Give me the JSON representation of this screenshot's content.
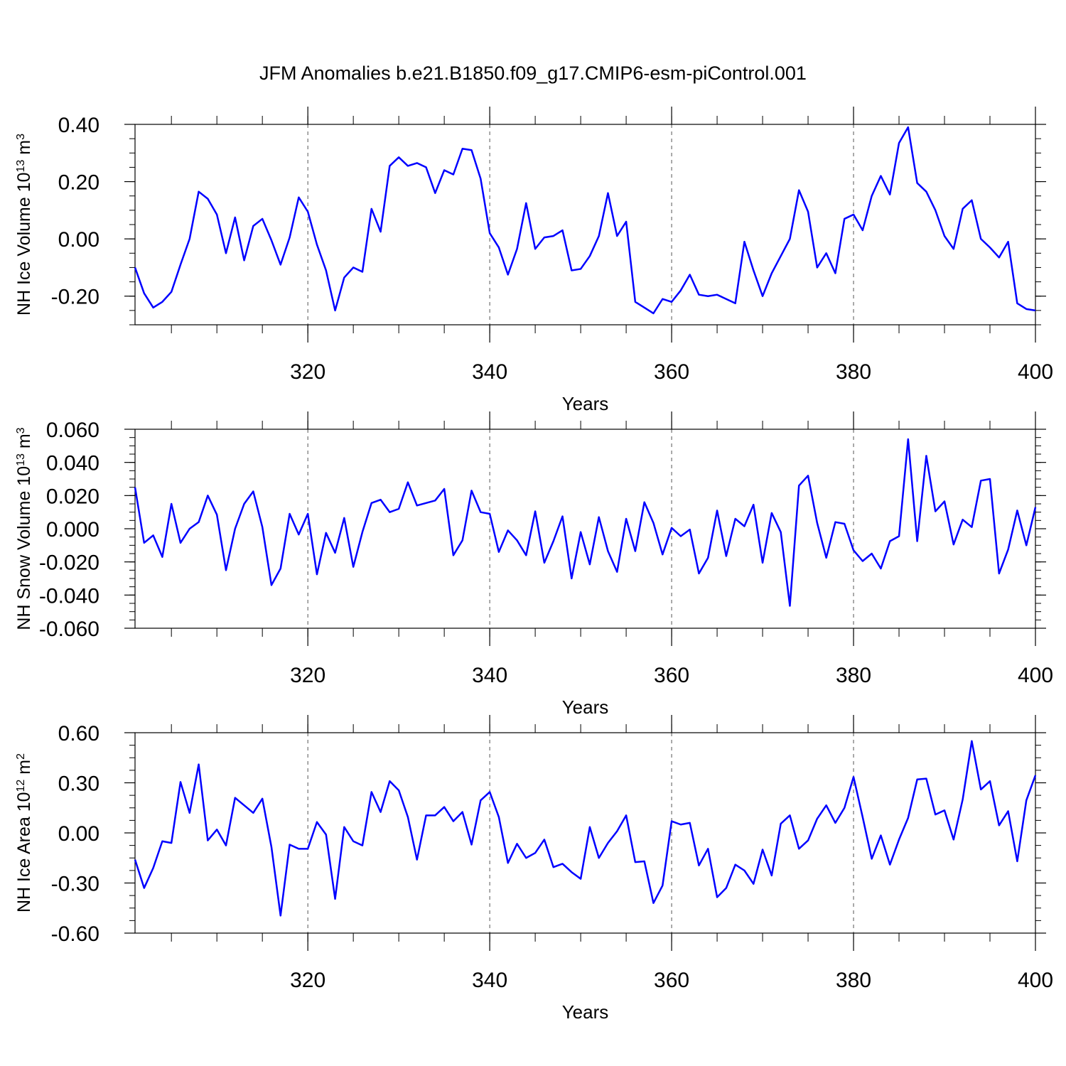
{
  "title": "JFM Anomalies b.e21.B1850.f09_g17.CMIP6-esm-piControl.001",
  "chart_data": [
    {
      "type": "line",
      "color": "#0000ff",
      "ylabel": [
        {
          "text": "NH Ice Volume 10"
        },
        {
          "text": "13",
          "sup": true
        },
        {
          "text": " m"
        },
        {
          "text": "3",
          "sup": true
        }
      ],
      "xlabel": "Years",
      "x": [
        301,
        302,
        303,
        304,
        305,
        306,
        307,
        308,
        309,
        310,
        311,
        312,
        313,
        314,
        315,
        316,
        317,
        318,
        319,
        320,
        321,
        322,
        323,
        324,
        325,
        326,
        327,
        328,
        329,
        330,
        331,
        332,
        333,
        334,
        335,
        336,
        337,
        338,
        339,
        340,
        341,
        342,
        343,
        344,
        345,
        346,
        347,
        348,
        349,
        350,
        351,
        352,
        353,
        354,
        355,
        356,
        357,
        358,
        359,
        360,
        361,
        362,
        363,
        364,
        365,
        366,
        367,
        368,
        369,
        370,
        371,
        372,
        373,
        374,
        375,
        376,
        377,
        378,
        379,
        380,
        381,
        382,
        383,
        384,
        385,
        386,
        387,
        388,
        389,
        390,
        391,
        392,
        393,
        394,
        395,
        396,
        397,
        398,
        399,
        400
      ],
      "values": [
        -0.1,
        -0.19,
        -0.24,
        -0.22,
        -0.185,
        -0.09,
        0.0,
        0.165,
        0.14,
        0.085,
        -0.05,
        0.075,
        -0.075,
        0.045,
        0.07,
        -0.005,
        -0.09,
        0.005,
        0.145,
        0.095,
        -0.02,
        -0.11,
        -0.25,
        -0.135,
        -0.1,
        -0.115,
        0.105,
        0.025,
        0.255,
        0.285,
        0.255,
        0.265,
        0.25,
        0.16,
        0.24,
        0.225,
        0.315,
        0.31,
        0.21,
        0.02,
        -0.03,
        -0.125,
        -0.035,
        0.125,
        -0.035,
        0.005,
        0.01,
        0.03,
        -0.11,
        -0.105,
        -0.06,
        0.01,
        0.16,
        0.01,
        0.06,
        -0.22,
        -0.24,
        -0.26,
        -0.21,
        -0.22,
        -0.18,
        -0.125,
        -0.195,
        -0.2,
        -0.195,
        -0.21,
        -0.225,
        -0.01,
        -0.11,
        -0.2,
        -0.12,
        -0.06,
        0.0,
        0.17,
        0.095,
        -0.1,
        -0.05,
        -0.12,
        0.07,
        0.085,
        0.03,
        0.15,
        0.22,
        0.155,
        0.335,
        0.39,
        0.195,
        0.165,
        0.1,
        0.01,
        -0.035,
        0.105,
        0.135,
        0.0,
        -0.03,
        -0.065,
        -0.01,
        -0.225,
        -0.245,
        -0.25
      ],
      "xlim": [
        301,
        400
      ],
      "xticks": [
        320,
        340,
        360,
        380,
        400
      ],
      "xminor_step": 5,
      "ylim": [
        -0.3,
        0.4
      ],
      "yminor_step": 0.05,
      "yticks": [
        {
          "value": -0.2,
          "label": "-0.20"
        },
        {
          "value": 0,
          "label": "0.00"
        },
        {
          "value": 0.2,
          "label": "0.20"
        },
        {
          "value": 0.4,
          "label": "0.40"
        }
      ],
      "xgrid": true
    },
    {
      "type": "line",
      "color": "#0000ff",
      "ylabel": [
        {
          "text": "NH Snow Volume 10"
        },
        {
          "text": "13",
          "sup": true
        },
        {
          "text": " m"
        },
        {
          "text": "3",
          "sup": true
        }
      ],
      "xlabel": "Years",
      "x": [
        301,
        302,
        303,
        304,
        305,
        306,
        307,
        308,
        309,
        310,
        311,
        312,
        313,
        314,
        315,
        316,
        317,
        318,
        319,
        320,
        321,
        322,
        323,
        324,
        325,
        326,
        327,
        328,
        329,
        330,
        331,
        332,
        333,
        334,
        335,
        336,
        337,
        338,
        339,
        340,
        341,
        342,
        343,
        344,
        345,
        346,
        347,
        348,
        349,
        350,
        351,
        352,
        353,
        354,
        355,
        356,
        357,
        358,
        359,
        360,
        361,
        362,
        363,
        364,
        365,
        366,
        367,
        368,
        369,
        370,
        371,
        372,
        373,
        374,
        375,
        376,
        377,
        378,
        379,
        380,
        381,
        382,
        383,
        384,
        385,
        386,
        387,
        388,
        389,
        390,
        391,
        392,
        393,
        394,
        395,
        396,
        397,
        398,
        399,
        400
      ],
      "values": [
        0.025,
        -0.0085,
        -0.004,
        -0.017,
        0.015,
        -0.0085,
        0.0,
        0.004,
        0.02,
        0.0085,
        -0.025,
        0.0,
        0.015,
        0.0225,
        0.001,
        -0.034,
        -0.024,
        0.009,
        -0.0035,
        0.009,
        -0.0275,
        -0.0025,
        -0.0145,
        0.0065,
        -0.023,
        -0.002,
        0.0155,
        0.0175,
        0.01,
        0.012,
        0.028,
        0.014,
        0.0155,
        0.017,
        0.024,
        -0.016,
        -0.007,
        0.023,
        0.01,
        0.009,
        -0.014,
        -0.001,
        -0.007,
        -0.016,
        0.0105,
        -0.0205,
        -0.0075,
        0.0075,
        -0.03,
        -0.002,
        -0.0215,
        0.007,
        -0.0135,
        -0.026,
        0.006,
        -0.0135,
        0.016,
        0.0035,
        -0.0155,
        0.0005,
        -0.0045,
        -0.0005,
        -0.027,
        -0.0175,
        0.011,
        -0.0165,
        0.006,
        0.0015,
        0.0145,
        -0.0205,
        0.0095,
        -0.002,
        -0.0465,
        0.026,
        0.032,
        0.0035,
        -0.0175,
        0.004,
        0.003,
        -0.013,
        -0.0195,
        -0.015,
        -0.024,
        -0.0075,
        -0.0045,
        0.054,
        -0.0075,
        0.044,
        0.0105,
        0.0165,
        -0.0095,
        0.0055,
        0.001,
        0.029,
        0.03,
        -0.027,
        -0.0125,
        0.011,
        -0.01,
        0.013
      ],
      "xlim": [
        301,
        400
      ],
      "xticks": [
        320,
        340,
        360,
        380,
        400
      ],
      "xminor_step": 5,
      "ylim": [
        -0.06,
        0.06
      ],
      "yminor_step": 0.005,
      "yticks": [
        {
          "value": -0.06,
          "label": "-0.060"
        },
        {
          "value": -0.04,
          "label": "-0.040"
        },
        {
          "value": -0.02,
          "label": "-0.020"
        },
        {
          "value": 0,
          "label": "0.000"
        },
        {
          "value": 0.02,
          "label": "0.020"
        },
        {
          "value": 0.04,
          "label": "0.040"
        },
        {
          "value": 0.06,
          "label": "0.060"
        }
      ],
      "xgrid": true
    },
    {
      "type": "line",
      "color": "#0000ff",
      "ylabel": [
        {
          "text": "NH Ice Area 10"
        },
        {
          "text": "12",
          "sup": true
        },
        {
          "text": " m"
        },
        {
          "text": "2",
          "sup": true
        }
      ],
      "xlabel": "Years",
      "x": [
        301,
        302,
        303,
        304,
        305,
        306,
        307,
        308,
        309,
        310,
        311,
        312,
        313,
        314,
        315,
        316,
        317,
        318,
        319,
        320,
        321,
        322,
        323,
        324,
        325,
        326,
        327,
        328,
        329,
        330,
        331,
        332,
        333,
        334,
        335,
        336,
        337,
        338,
        339,
        340,
        341,
        342,
        343,
        344,
        345,
        346,
        347,
        348,
        349,
        350,
        351,
        352,
        353,
        354,
        355,
        356,
        357,
        358,
        359,
        360,
        361,
        362,
        363,
        364,
        365,
        366,
        367,
        368,
        369,
        370,
        371,
        372,
        373,
        374,
        375,
        376,
        377,
        378,
        379,
        380,
        381,
        382,
        383,
        384,
        385,
        386,
        387,
        388,
        389,
        390,
        391,
        392,
        393,
        394,
        395,
        396,
        397,
        398,
        399,
        400
      ],
      "values": [
        -0.16,
        -0.33,
        -0.21,
        -0.05,
        -0.06,
        0.305,
        0.12,
        0.41,
        -0.045,
        0.02,
        -0.075,
        0.21,
        0.165,
        0.12,
        0.205,
        -0.085,
        -0.495,
        -0.07,
        -0.095,
        -0.095,
        0.065,
        -0.01,
        -0.395,
        0.035,
        -0.05,
        -0.075,
        0.245,
        0.125,
        0.31,
        0.255,
        0.095,
        -0.16,
        0.105,
        0.105,
        0.155,
        0.07,
        0.125,
        -0.07,
        0.195,
        0.245,
        0.095,
        -0.18,
        -0.065,
        -0.15,
        -0.12,
        -0.04,
        -0.205,
        -0.185,
        -0.235,
        -0.275,
        0.035,
        -0.15,
        -0.06,
        0.01,
        0.105,
        -0.175,
        -0.17,
        -0.42,
        -0.315,
        0.07,
        0.05,
        0.06,
        -0.195,
        -0.095,
        -0.385,
        -0.33,
        -0.19,
        -0.225,
        -0.305,
        -0.1,
        -0.255,
        0.055,
        0.105,
        -0.095,
        -0.045,
        0.085,
        0.165,
        0.06,
        0.15,
        0.335,
        0.095,
        -0.155,
        -0.015,
        -0.19,
        -0.04,
        0.09,
        0.32,
        0.325,
        0.11,
        0.135,
        -0.04,
        0.2,
        0.55,
        0.26,
        0.31,
        0.045,
        0.13,
        -0.17,
        0.195,
        0.345
      ],
      "xlim": [
        301,
        400
      ],
      "xticks": [
        320,
        340,
        360,
        380,
        400
      ],
      "xminor_step": 5,
      "ylim": [
        -0.6,
        0.6
      ],
      "yminor_step": 0.075,
      "yticks": [
        {
          "value": -0.6,
          "label": "-0.60"
        },
        {
          "value": -0.3,
          "label": "-0.30"
        },
        {
          "value": 0,
          "label": "0.00"
        },
        {
          "value": 0.3,
          "label": "0.30"
        },
        {
          "value": 0.6,
          "label": "0.60"
        }
      ],
      "xgrid": true
    }
  ]
}
